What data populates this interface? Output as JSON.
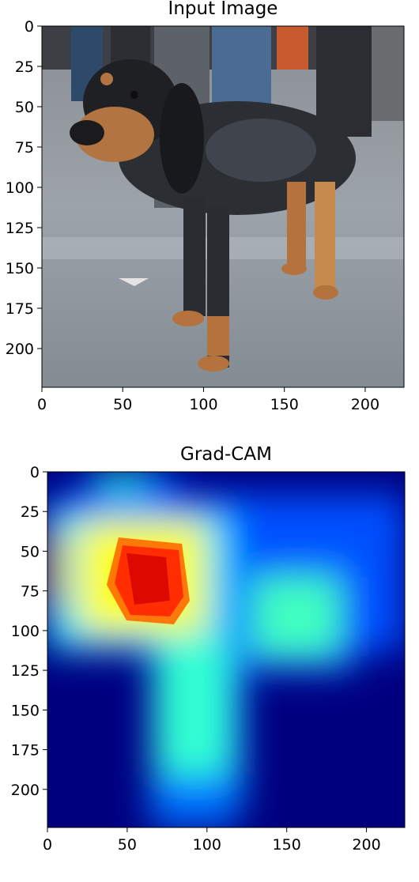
{
  "chart_data": [
    {
      "type": "image",
      "title": "Input Image",
      "xlim": [
        0,
        224
      ],
      "ylim": [
        224,
        0
      ],
      "x_ticks": [
        0,
        50,
        100,
        150,
        200
      ],
      "y_ticks": [
        0,
        25,
        50,
        75,
        100,
        125,
        150,
        175,
        200
      ],
      "image_content": "photo of a bluetick hound dog standing on a grey concrete floor, people's legs in background"
    },
    {
      "type": "heatmap",
      "title": "Grad-CAM",
      "colormap": "jet",
      "xlim": [
        0,
        224
      ],
      "ylim": [
        224,
        0
      ],
      "x_ticks": [
        0,
        50,
        100,
        150,
        200
      ],
      "y_ticks": [
        0,
        25,
        50,
        75,
        100,
        125,
        150,
        175,
        200
      ],
      "hotspots": [
        {
          "x": 62,
          "y": 62,
          "value": 1.0
        },
        {
          "x": 55,
          "y": 50,
          "value": 0.9
        },
        {
          "x": 78,
          "y": 80,
          "value": 0.85
        },
        {
          "x": 0,
          "y": 55,
          "value": 0.6
        },
        {
          "x": 100,
          "y": 150,
          "value": 0.5
        },
        {
          "x": 155,
          "y": 88,
          "value": 0.45
        },
        {
          "x": 50,
          "y": 0,
          "value": 0.4
        }
      ]
    }
  ]
}
